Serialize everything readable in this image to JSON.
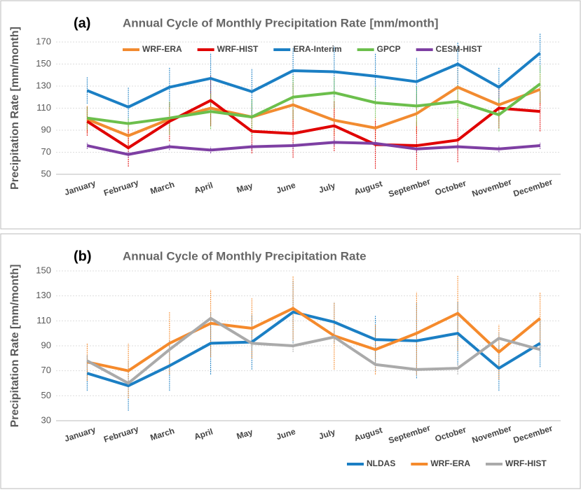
{
  "chart_data": [
    {
      "type": "line",
      "label": "(a)",
      "title": "Annual Cycle of Monthly Precipitation Rate [mm/month]",
      "y_label": "Precipitation Rate [mm/month]",
      "categories": [
        "January",
        "February",
        "March",
        "April",
        "May",
        "June",
        "July",
        "August",
        "September",
        "October",
        "November",
        "December"
      ],
      "ylim": [
        50,
        170
      ],
      "yticks": [
        50,
        70,
        90,
        110,
        130,
        150,
        170
      ],
      "grid": true,
      "legend": "top",
      "series": [
        {
          "name": "WRF-ERA",
          "color": "#f28b30",
          "values": [
            100,
            85,
            100,
            110,
            102,
            113,
            99,
            92,
            105,
            129,
            113,
            127
          ],
          "errors": [
            12,
            12,
            14,
            15,
            12,
            20,
            14,
            10,
            18,
            18,
            15,
            14
          ]
        },
        {
          "name": "WRF-HIST",
          "color": "#e00000",
          "values": [
            98,
            74,
            98,
            117,
            89,
            87,
            94,
            77,
            76,
            81,
            110,
            107
          ],
          "errors": [
            13,
            17,
            18,
            23,
            20,
            22,
            23,
            22,
            22,
            20,
            18,
            18
          ]
        },
        {
          "name": "ERA-Interim",
          "color": "#1b7fc4",
          "values": [
            126,
            111,
            129,
            137,
            125,
            144,
            143,
            139,
            134,
            150,
            129,
            160
          ],
          "errors": [
            12,
            18,
            18,
            23,
            21,
            21,
            23,
            21,
            22,
            20,
            18,
            18
          ]
        },
        {
          "name": "GPCP",
          "color": "#6cbf4c",
          "values": [
            101,
            96,
            101,
            107,
            102,
            120,
            124,
            115,
            112,
            116,
            104,
            132
          ],
          "errors": [
            10,
            5,
            15,
            16,
            16,
            20,
            14,
            14,
            18,
            15,
            15,
            17
          ]
        },
        {
          "name": "CESM-HIST",
          "color": "#7e3fa3",
          "values": [
            76,
            68,
            75,
            72,
            75,
            76,
            79,
            78,
            73,
            75,
            73,
            76
          ],
          "errors": [
            3,
            3,
            3,
            3,
            3,
            3,
            3,
            3,
            3,
            3,
            3,
            3
          ]
        }
      ]
    },
    {
      "type": "line",
      "label": "(b)",
      "title": "Annual Cycle of Monthly Precipitation Rate",
      "y_label": "Precipitation Rate [mm/month]",
      "categories": [
        "January",
        "February",
        "March",
        "April",
        "May",
        "June",
        "July",
        "August",
        "September",
        "October",
        "November",
        "December"
      ],
      "ylim": [
        30,
        150
      ],
      "yticks": [
        30,
        50,
        70,
        90,
        110,
        130,
        150
      ],
      "grid": true,
      "legend": "lower right",
      "series": [
        {
          "name": "NLDAS",
          "color": "#1b7fc4",
          "values": [
            68,
            58,
            74,
            92,
            93,
            117,
            109,
            95,
            94,
            100,
            72,
            92
          ],
          "errors": [
            14,
            20,
            20,
            25,
            22,
            25,
            16,
            19,
            30,
            25,
            18,
            19
          ]
        },
        {
          "name": "WRF-ERA",
          "color": "#f58a2c",
          "values": [
            77,
            70,
            92,
            108,
            104,
            120,
            98,
            87,
            100,
            116,
            85,
            112
          ],
          "errors": [
            15,
            22,
            25,
            27,
            24,
            26,
            27,
            20,
            33,
            30,
            22,
            21
          ]
        },
        {
          "name": "WRF-HIST",
          "color": "#aaaaaa",
          "values": [
            78,
            60,
            87,
            112,
            92,
            90,
            97,
            75,
            71,
            72,
            96,
            87
          ],
          "errors": [
            5,
            5,
            6,
            5,
            5,
            5,
            5,
            5,
            5,
            5,
            5,
            5
          ]
        }
      ]
    }
  ]
}
